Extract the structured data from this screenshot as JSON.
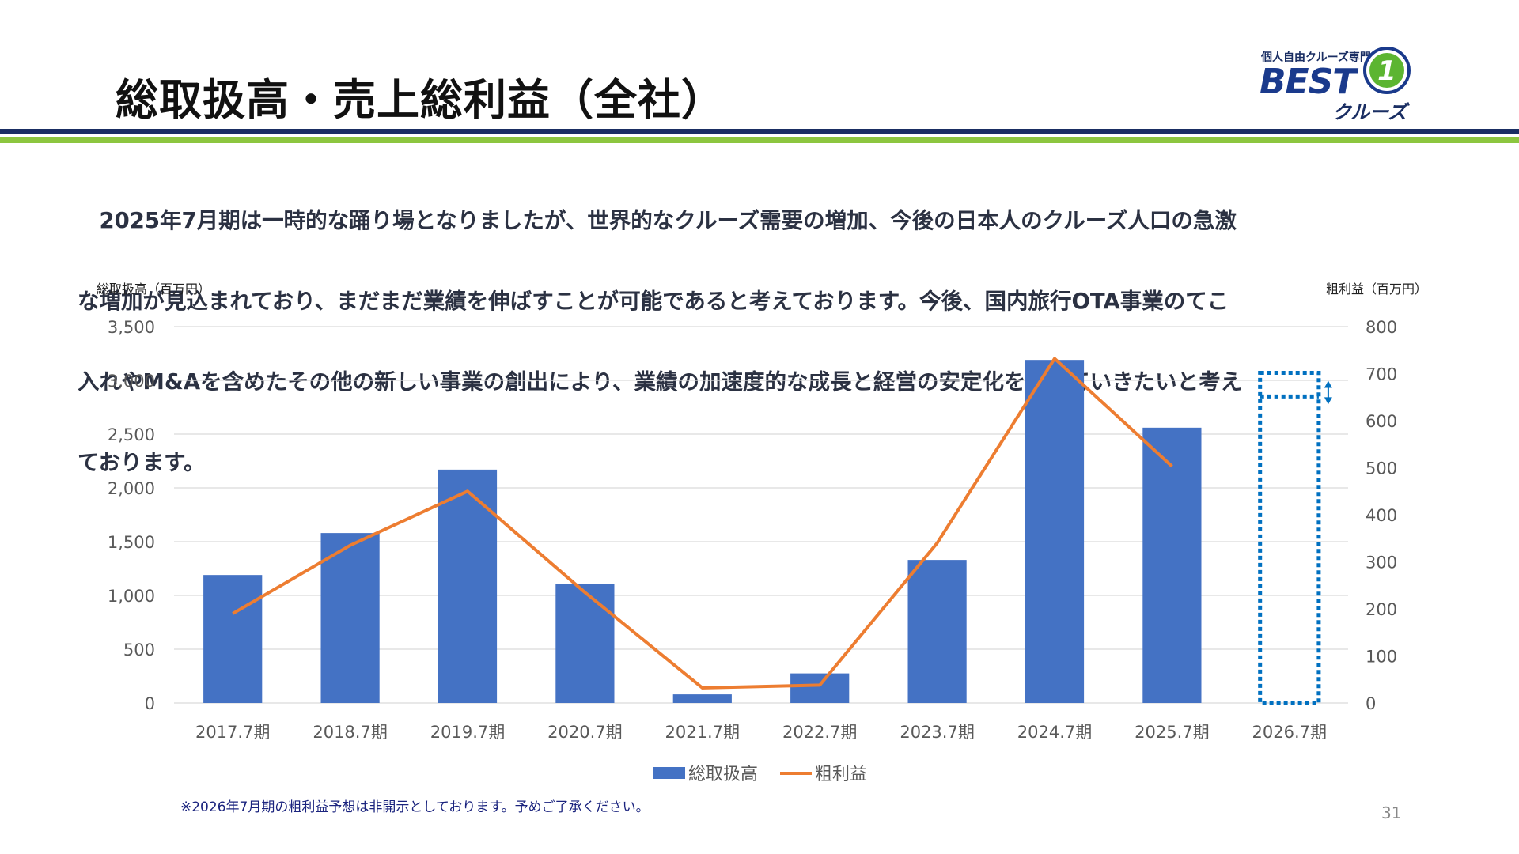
{
  "slide": {
    "title": "総取扱高・売上総利益（全社）",
    "lead": "　2025年7月期は一時的な踊り場となりましたが、世界的なクルーズ需要の増加、今後の日本人のクルーズ人口の急激な増加が見込まれており、まだまだ業績を伸ばすことが可能であると考えております。今後、国内旅行OTA事業のてこ入れやM&Aを含めたその他の新しい事業の創出により、業績の加速度的な成長と経営の安定化を図っていきたいと考えております。",
    "lead_lines": [
      "　2025年7月期は一時的な踊り場となりましたが、世界的なクルーズ需要の増加、今後の日本人のクルーズ人口の急激",
      "な増加が見込まれており、まだまだ業績を伸ばすことが可能であると考えております。今後、国内旅行OTA事業のてこ",
      "入れやM&Aを含めたその他の新しい事業の創出により、業績の加速度的な成長と経営の安定化を図っていきたいと考え",
      "ております。"
    ],
    "footnote": "※2026年7月期の粗利益予想は非開示としております。予めご了承ください。",
    "page_number": "31"
  },
  "logo": {
    "tagline": "個人自由クルーズ専門",
    "brand": "BEST",
    "badge": "1",
    "sub": "クルーズ",
    "colors": {
      "navy": "#1a2e63",
      "green": "#8cc63f"
    }
  },
  "chart_data": {
    "type": "bar",
    "categories": [
      "2017.7期",
      "2018.7期",
      "2019.7期",
      "2020.7期",
      "2021.7期",
      "2022.7期",
      "2023.7期",
      "2024.7期",
      "2025.7期",
      "2026.7期"
    ],
    "series": [
      {
        "name": "総取扱高",
        "type": "bar",
        "axis": "left",
        "color": "#4472c4",
        "values": [
          1190,
          1580,
          2170,
          1105,
          80,
          275,
          1330,
          3190,
          2560,
          null
        ]
      },
      {
        "name": "粗利益",
        "type": "line",
        "axis": "right",
        "color": "#ed7d31",
        "values": [
          190,
          335,
          450,
          235,
          32,
          38,
          340,
          732,
          503,
          null
        ]
      }
    ],
    "ylabel_left": "総取扱高（百万円）",
    "ylabel_right": "粗利益（百万円）",
    "ylim_left": [
      0,
      3500
    ],
    "ylim_right": [
      0,
      800
    ],
    "yticks_left": [
      "0",
      "500",
      "1,000",
      "1,500",
      "2,000",
      "2,500",
      "3,000",
      "3,500"
    ],
    "yticks_right": [
      "0",
      "100",
      "200",
      "300",
      "400",
      "500",
      "600",
      "700",
      "800"
    ],
    "forecast": {
      "category": "2026.7期",
      "total_lower": 2850,
      "total_upper": 3070,
      "style": "dotted-outline",
      "color": "#0070c0"
    },
    "grid": true,
    "legend": "bottom"
  }
}
